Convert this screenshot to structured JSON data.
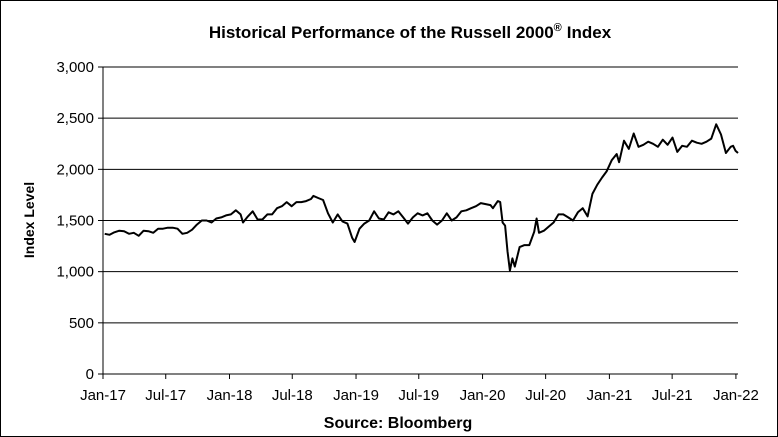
{
  "chart_data": {
    "type": "line",
    "title": "Historical Performance of the Russell 2000",
    "title_superscript": "®",
    "title_suffix": "Index",
    "ylabel": "Index Level",
    "xlabel": "Source: Bloomberg",
    "ylim": [
      0,
      3000
    ],
    "y_ticks": [
      "0",
      "500",
      "1,000",
      "1,500",
      "2,000",
      "2,500",
      "3,000"
    ],
    "x_range": [
      "2017-01-01",
      "2022-01-07"
    ],
    "x_ticks": [
      {
        "label": "Jan-17",
        "date": "2017-01-01"
      },
      {
        "label": "Jul-17",
        "date": "2017-07-01"
      },
      {
        "label": "Jan-18",
        "date": "2018-01-01"
      },
      {
        "label": "Jul-18",
        "date": "2018-07-01"
      },
      {
        "label": "Jan-19",
        "date": "2019-01-01"
      },
      {
        "label": "Jul-19",
        "date": "2019-07-01"
      },
      {
        "label": "Jan-20",
        "date": "2020-01-01"
      },
      {
        "label": "Jul-20",
        "date": "2020-07-01"
      },
      {
        "label": "Jan-21",
        "date": "2021-01-01"
      },
      {
        "label": "Jul-21",
        "date": "2021-07-01"
      },
      {
        "label": "Jan-22",
        "date": "2022-01-01"
      }
    ],
    "grid": "horizontal",
    "legend": "none",
    "line_color": "#000000",
    "series": [
      {
        "points": [
          [
            "2017-01-06",
            1370
          ],
          [
            "2017-01-20",
            1360
          ],
          [
            "2017-02-03",
            1385
          ],
          [
            "2017-02-17",
            1400
          ],
          [
            "2017-03-03",
            1395
          ],
          [
            "2017-03-17",
            1370
          ],
          [
            "2017-03-31",
            1380
          ],
          [
            "2017-04-14",
            1350
          ],
          [
            "2017-04-28",
            1400
          ],
          [
            "2017-05-12",
            1395
          ],
          [
            "2017-05-26",
            1380
          ],
          [
            "2017-06-09",
            1420
          ],
          [
            "2017-06-23",
            1420
          ],
          [
            "2017-07-07",
            1430
          ],
          [
            "2017-07-21",
            1430
          ],
          [
            "2017-08-04",
            1420
          ],
          [
            "2017-08-18",
            1370
          ],
          [
            "2017-09-01",
            1380
          ],
          [
            "2017-09-15",
            1410
          ],
          [
            "2017-09-29",
            1460
          ],
          [
            "2017-10-13",
            1500
          ],
          [
            "2017-10-27",
            1500
          ],
          [
            "2017-11-10",
            1480
          ],
          [
            "2017-11-24",
            1520
          ],
          [
            "2017-12-08",
            1530
          ],
          [
            "2017-12-22",
            1550
          ],
          [
            "2018-01-05",
            1560
          ],
          [
            "2018-01-19",
            1600
          ],
          [
            "2018-02-02",
            1560
          ],
          [
            "2018-02-09",
            1480
          ],
          [
            "2018-02-23",
            1540
          ],
          [
            "2018-03-09",
            1590
          ],
          [
            "2018-03-23",
            1510
          ],
          [
            "2018-04-06",
            1510
          ],
          [
            "2018-04-20",
            1560
          ],
          [
            "2018-05-04",
            1560
          ],
          [
            "2018-05-18",
            1620
          ],
          [
            "2018-06-01",
            1640
          ],
          [
            "2018-06-15",
            1680
          ],
          [
            "2018-06-29",
            1640
          ],
          [
            "2018-07-13",
            1680
          ],
          [
            "2018-07-27",
            1680
          ],
          [
            "2018-08-10",
            1690
          ],
          [
            "2018-08-24",
            1710
          ],
          [
            "2018-08-31",
            1740
          ],
          [
            "2018-09-14",
            1720
          ],
          [
            "2018-09-28",
            1700
          ],
          [
            "2018-10-12",
            1570
          ],
          [
            "2018-10-26",
            1480
          ],
          [
            "2018-11-09",
            1560
          ],
          [
            "2018-11-23",
            1490
          ],
          [
            "2018-12-07",
            1470
          ],
          [
            "2018-12-21",
            1330
          ],
          [
            "2018-12-28",
            1290
          ],
          [
            "2019-01-11",
            1420
          ],
          [
            "2019-01-25",
            1470
          ],
          [
            "2019-02-08",
            1500
          ],
          [
            "2019-02-22",
            1590
          ],
          [
            "2019-03-08",
            1520
          ],
          [
            "2019-03-22",
            1510
          ],
          [
            "2019-04-05",
            1580
          ],
          [
            "2019-04-19",
            1560
          ],
          [
            "2019-05-03",
            1590
          ],
          [
            "2019-05-17",
            1530
          ],
          [
            "2019-05-31",
            1470
          ],
          [
            "2019-06-14",
            1530
          ],
          [
            "2019-06-28",
            1570
          ],
          [
            "2019-07-12",
            1550
          ],
          [
            "2019-07-26",
            1570
          ],
          [
            "2019-08-09",
            1500
          ],
          [
            "2019-08-23",
            1460
          ],
          [
            "2019-09-06",
            1500
          ],
          [
            "2019-09-20",
            1570
          ],
          [
            "2019-10-04",
            1500
          ],
          [
            "2019-10-18",
            1530
          ],
          [
            "2019-11-01",
            1590
          ],
          [
            "2019-11-15",
            1600
          ],
          [
            "2019-11-29",
            1620
          ],
          [
            "2019-12-13",
            1640
          ],
          [
            "2019-12-27",
            1670
          ],
          [
            "2020-01-10",
            1660
          ],
          [
            "2020-01-24",
            1650
          ],
          [
            "2020-01-31",
            1620
          ],
          [
            "2020-02-14",
            1690
          ],
          [
            "2020-02-21",
            1680
          ],
          [
            "2020-02-28",
            1480
          ],
          [
            "2020-03-06",
            1450
          ],
          [
            "2020-03-13",
            1200
          ],
          [
            "2020-03-20",
            1010
          ],
          [
            "2020-03-27",
            1130
          ],
          [
            "2020-04-03",
            1050
          ],
          [
            "2020-04-17",
            1240
          ],
          [
            "2020-05-01",
            1260
          ],
          [
            "2020-05-15",
            1260
          ],
          [
            "2020-05-29",
            1390
          ],
          [
            "2020-06-05",
            1520
          ],
          [
            "2020-06-12",
            1380
          ],
          [
            "2020-06-26",
            1400
          ],
          [
            "2020-07-10",
            1440
          ],
          [
            "2020-07-24",
            1480
          ],
          [
            "2020-08-07",
            1560
          ],
          [
            "2020-08-21",
            1560
          ],
          [
            "2020-09-04",
            1530
          ],
          [
            "2020-09-18",
            1500
          ],
          [
            "2020-10-02",
            1580
          ],
          [
            "2020-10-16",
            1620
          ],
          [
            "2020-10-30",
            1540
          ],
          [
            "2020-11-06",
            1650
          ],
          [
            "2020-11-13",
            1760
          ],
          [
            "2020-11-27",
            1850
          ],
          [
            "2020-12-11",
            1920
          ],
          [
            "2020-12-24",
            1980
          ],
          [
            "2021-01-08",
            2090
          ],
          [
            "2021-01-22",
            2150
          ],
          [
            "2021-01-29",
            2070
          ],
          [
            "2021-02-12",
            2280
          ],
          [
            "2021-02-26",
            2200
          ],
          [
            "2021-03-12",
            2350
          ],
          [
            "2021-03-26",
            2220
          ],
          [
            "2021-04-09",
            2240
          ],
          [
            "2021-04-23",
            2270
          ],
          [
            "2021-05-07",
            2250
          ],
          [
            "2021-05-21",
            2220
          ],
          [
            "2021-06-04",
            2290
          ],
          [
            "2021-06-18",
            2240
          ],
          [
            "2021-07-02",
            2310
          ],
          [
            "2021-07-16",
            2170
          ],
          [
            "2021-07-30",
            2230
          ],
          [
            "2021-08-13",
            2220
          ],
          [
            "2021-08-27",
            2280
          ],
          [
            "2021-09-10",
            2260
          ],
          [
            "2021-09-24",
            2250
          ],
          [
            "2021-10-08",
            2270
          ],
          [
            "2021-10-22",
            2300
          ],
          [
            "2021-11-05",
            2440
          ],
          [
            "2021-11-19",
            2340
          ],
          [
            "2021-12-03",
            2160
          ],
          [
            "2021-12-17",
            2220
          ],
          [
            "2021-12-24",
            2230
          ],
          [
            "2021-12-31",
            2180
          ],
          [
            "2022-01-07",
            2160
          ]
        ]
      }
    ]
  }
}
